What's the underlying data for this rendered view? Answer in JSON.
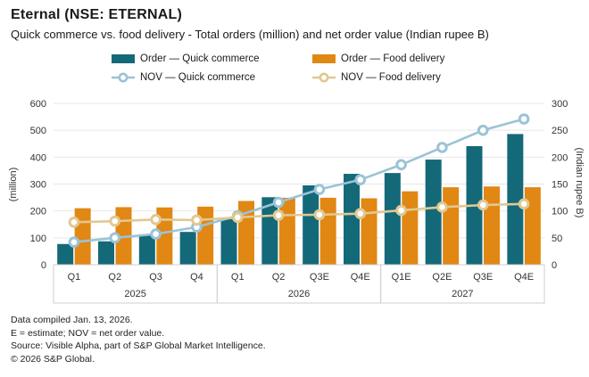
{
  "header": {
    "title": "Eternal (NSE: ETERNAL)",
    "subtitle": "Quick commerce vs. food delivery - Total orders (million) and net order value (Indian rupee B)"
  },
  "legend": {
    "items": [
      {
        "label": "Order — Quick commerce",
        "type": "bar",
        "color": "#146979"
      },
      {
        "label": "Order — Food delivery",
        "type": "bar",
        "color": "#e18714"
      },
      {
        "label": "NOV — Quick commerce",
        "type": "line",
        "color": "#9bc3d7"
      },
      {
        "label": "NOV — Food delivery",
        "type": "line",
        "color": "#e1c891"
      }
    ]
  },
  "chart_data": {
    "type": "bar",
    "subtype": "grouped bars with two overlay lines (dual axis)",
    "categories": [
      "Q1",
      "Q2",
      "Q3",
      "Q4",
      "Q1",
      "Q2",
      "Q3E",
      "Q4E",
      "Q1E",
      "Q2E",
      "Q3E",
      "Q4E"
    ],
    "year_groups": [
      {
        "year": "2025",
        "quarters": [
          "Q1",
          "Q2",
          "Q3",
          "Q4"
        ]
      },
      {
        "year": "2026",
        "quarters": [
          "Q1",
          "Q2",
          "Q3E",
          "Q4E"
        ]
      },
      {
        "year": "2027",
        "quarters": [
          "Q1E",
          "Q2E",
          "Q3E",
          "Q4E"
        ]
      }
    ],
    "series": [
      {
        "name": "Order — Quick commerce",
        "type": "bar",
        "axis": "left",
        "color": "#146979",
        "values": [
          77,
          87,
          113,
          122,
          170,
          251,
          295,
          338,
          341,
          391,
          441,
          486
        ]
      },
      {
        "name": "Order — Food delivery",
        "type": "bar",
        "axis": "left",
        "color": "#e18714",
        "values": [
          210,
          214,
          213,
          216,
          237,
          249,
          249,
          247,
          273,
          288,
          291,
          288
        ]
      },
      {
        "name": "NOV — Quick commerce",
        "type": "line",
        "axis": "right",
        "color": "#9bc3d7",
        "values": [
          42,
          50,
          57,
          70,
          91,
          116,
          140,
          158,
          186,
          218,
          250,
          271
        ]
      },
      {
        "name": "NOV — Food delivery",
        "type": "line",
        "axis": "right",
        "color": "#e1c891",
        "values": [
          79,
          81,
          84,
          83,
          88,
          92,
          93,
          95,
          101,
          107,
          111,
          113
        ]
      }
    ],
    "left_axis": {
      "label": "(million)",
      "min": 0,
      "max": 600,
      "step": 100
    },
    "right_axis": {
      "label": "(Indian rupee B)",
      "min": 0,
      "max": 300,
      "step": 50
    },
    "grid": true,
    "legend_position": "top",
    "gridline_color": "#e7e7e7",
    "box_border_color": "#cfcfcf",
    "marker_style": "white-filled donut circles"
  },
  "footer": {
    "lines": [
      "Data compiled Jan. 13, 2026.",
      "E = estimate; NOV = net order value.",
      "Source: Visible Alpha, part of S&P Global Market Intelligence.",
      "© 2026 S&P Global."
    ]
  }
}
